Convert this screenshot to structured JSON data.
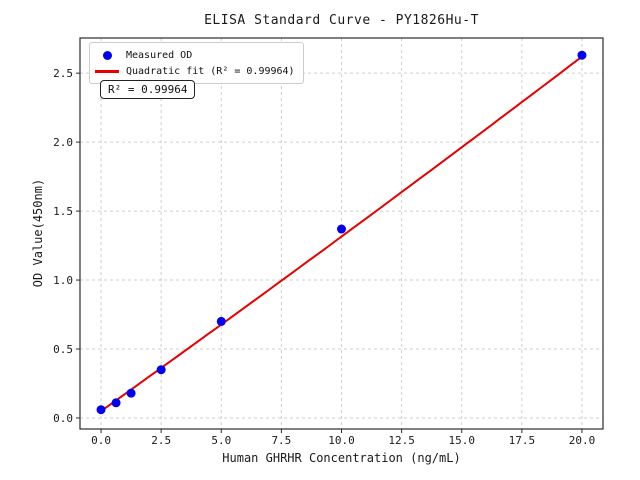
{
  "title": "ELISA Standard Curve - PY1826Hu-T",
  "legend": {
    "items": [
      {
        "label": "Measured OD",
        "marker": "dot",
        "color": "#0000ee"
      },
      {
        "label": "Quadratic fit (R² = 0.99964)",
        "marker": "line",
        "color": "#e60000"
      }
    ]
  },
  "annotation": "R² = 0.99964",
  "colors": {
    "scatter": "#0000ee",
    "fit_line": "#e60000",
    "grid": "#cfcfcf",
    "frame": "#2b2b2b",
    "text": "#1a1a1a"
  },
  "chart_data": {
    "type": "scatter",
    "title": "ELISA Standard Curve - PY1826Hu-T",
    "xlabel": "Human GHRHR Concentration (ng/mL)",
    "ylabel": "OD Value(450nm)",
    "xlim": [
      -0.875,
      20.875
    ],
    "ylim": [
      -0.08,
      2.755
    ],
    "xticks": [
      0.0,
      2.5,
      5.0,
      7.5,
      10.0,
      12.5,
      15.0,
      17.5,
      20.0
    ],
    "yticks": [
      0.0,
      0.5,
      1.0,
      1.5,
      2.0,
      2.5
    ],
    "grid": true,
    "grid_style": "dashed",
    "legend_position": "upper left",
    "r_squared": 0.99964,
    "series": [
      {
        "name": "Measured OD",
        "type": "scatter",
        "color": "#0000ee",
        "x": [
          0,
          0.625,
          1.25,
          2.5,
          5,
          10,
          20
        ],
        "y": [
          0.06,
          0.11,
          0.18,
          0.35,
          0.7,
          1.37,
          2.63
        ]
      },
      {
        "name": "Quadratic fit (R² = 0.99964)",
        "type": "line",
        "color": "#e60000",
        "fit_coefficients": {
          "a": 0.05,
          "b": 0.1245,
          "c": 0.0002
        },
        "x_range": [
          0,
          20
        ]
      }
    ]
  }
}
